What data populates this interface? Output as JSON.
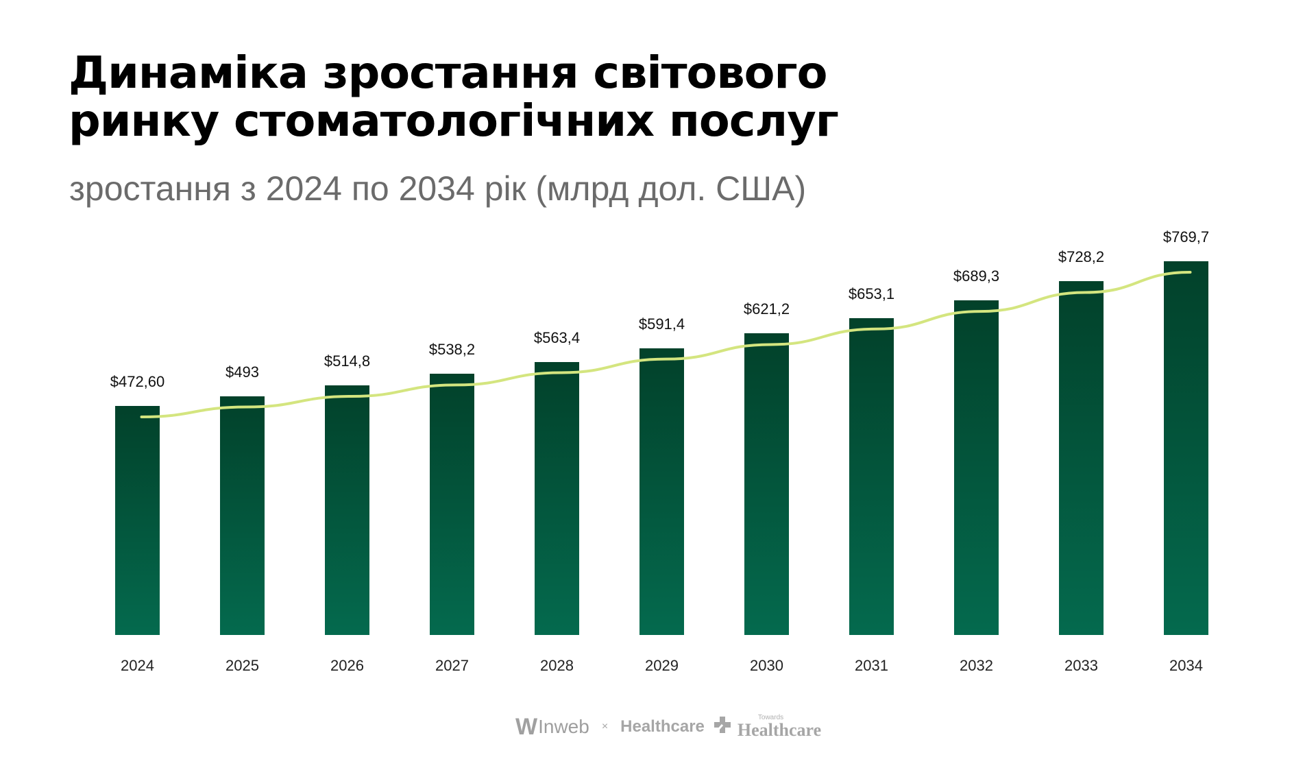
{
  "header": {
    "title_line1": "Динаміка зростання світового",
    "title_line2": "ринку стоматологічних послуг",
    "subtitle": "зростання з 2024 по 2034 рік (млрд дол. США)"
  },
  "colors": {
    "bar_top": "#02412a",
    "bar_bottom": "#046a4e",
    "trend_line": "#d4e57f",
    "title": "#000000",
    "subtitle": "#6b6b6b"
  },
  "chart_data": {
    "type": "bar",
    "title": "Динаміка зростання світового ринку стоматологічних послуг",
    "subtitle": "зростання з 2024 по 2034 рік (млрд дол. США)",
    "xlabel": "",
    "ylabel": "",
    "categories": [
      "2024",
      "2025",
      "2026",
      "2027",
      "2028",
      "2029",
      "2030",
      "2031",
      "2032",
      "2033",
      "2034"
    ],
    "values": [
      472.6,
      493,
      514.8,
      538.2,
      563.4,
      591.4,
      621.2,
      653.1,
      689.3,
      728.2,
      769.7
    ],
    "labels": [
      "$472,60",
      "$493",
      "$514,8",
      "$538,2",
      "$563,4",
      "$591,4",
      "$621,2",
      "$653,1",
      "$689,3",
      "$728,2",
      "$769,7"
    ],
    "overlay": "trend line (light green) through bar tops",
    "grid": false,
    "axes_visible": false,
    "legend": null
  },
  "footer": {
    "brand1": "Inweb",
    "brand1_mark": "W",
    "separator": "×",
    "brand2": "Healthcare",
    "brand3_small": "Towards",
    "brand3": "Healthcare"
  }
}
